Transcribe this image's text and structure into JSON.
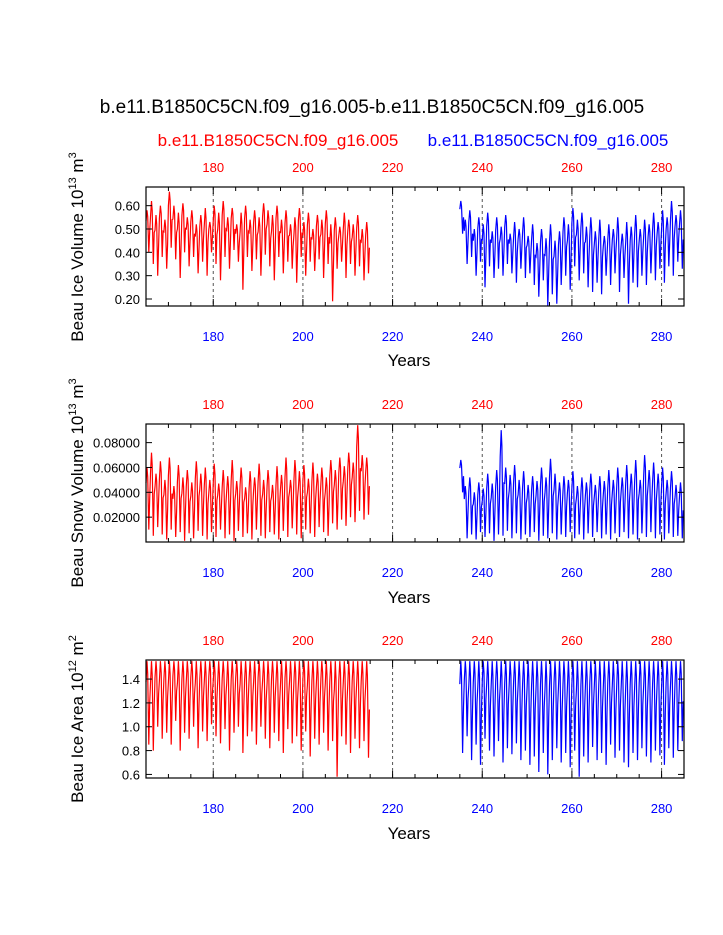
{
  "page": {
    "title": "b.e11.B1850C5CN.f09_g16.005-b.e11.B1850C5CN.f09_g16.005",
    "case_a": "b.e11.B1850C5CN.f09_g16.005",
    "case_b": "b.e11.B1850C5CN.f09_g16.005"
  },
  "colors": {
    "case_a": "#ff0000",
    "case_b": "#0000ff",
    "axis": "#000000",
    "grid": "#555555"
  },
  "chart_data": [
    {
      "type": "line",
      "name": "ice-volume",
      "ylabel_base": "Beau Ice Volume 10",
      "ylabel_exp": "13",
      "ylabel_unit": "m",
      "ylabel_unit_exp": "3",
      "xlabel": "Years",
      "xlim": [
        165,
        285
      ],
      "ylim": [
        0.17,
        0.68
      ],
      "yticks": [
        0.2,
        0.3,
        0.4,
        0.5,
        0.6
      ],
      "ytick_labels": [
        "0.20",
        "0.30",
        "0.40",
        "0.50",
        "0.60"
      ],
      "xticks": [
        180,
        200,
        220,
        240,
        260,
        280
      ],
      "xtick_labels_top": [
        "180",
        "200",
        "220",
        "240",
        "260",
        "280"
      ],
      "xtick_labels_bottom": [
        "180",
        "200",
        "220",
        "240",
        "260",
        "280"
      ],
      "gridlines": [
        180,
        200,
        220,
        240,
        260,
        280
      ],
      "series": [
        {
          "name": "case_a",
          "x_start": 165,
          "x_end": 215,
          "max": [
            0.58,
            0.62,
            0.56,
            0.6,
            0.54,
            0.66,
            0.6,
            0.57,
            0.61,
            0.55,
            0.58,
            0.52,
            0.56,
            0.59,
            0.53,
            0.6,
            0.57,
            0.62,
            0.55,
            0.59,
            0.52,
            0.57,
            0.6,
            0.54,
            0.58,
            0.55,
            0.61,
            0.58,
            0.56,
            0.6,
            0.54,
            0.58,
            0.52,
            0.55,
            0.59,
            0.53,
            0.57,
            0.5,
            0.56,
            0.54,
            0.58,
            0.52,
            0.55,
            0.51,
            0.57,
            0.54,
            0.52,
            0.56,
            0.5,
            0.53
          ],
          "min": [
            0.4,
            0.35,
            0.3,
            0.38,
            0.33,
            0.42,
            0.37,
            0.29,
            0.4,
            0.34,
            0.38,
            0.31,
            0.36,
            0.3,
            0.4,
            0.35,
            0.28,
            0.38,
            0.33,
            0.41,
            0.36,
            0.24,
            0.38,
            0.32,
            0.37,
            0.3,
            0.39,
            0.34,
            0.28,
            0.38,
            0.31,
            0.36,
            0.33,
            0.27,
            0.38,
            0.3,
            0.36,
            0.32,
            0.37,
            0.29,
            0.35,
            0.19,
            0.33,
            0.36,
            0.29,
            0.35,
            0.3,
            0.34,
            0.28,
            0.31
          ]
        },
        {
          "name": "case_b",
          "x_start": 235,
          "x_end": 285,
          "max": [
            0.62,
            0.54,
            0.58,
            0.5,
            0.55,
            0.52,
            0.57,
            0.49,
            0.55,
            0.51,
            0.56,
            0.48,
            0.53,
            0.5,
            0.55,
            0.47,
            0.52,
            0.44,
            0.5,
            0.46,
            0.52,
            0.45,
            0.49,
            0.55,
            0.52,
            0.59,
            0.54,
            0.57,
            0.51,
            0.55,
            0.49,
            0.54,
            0.47,
            0.52,
            0.5,
            0.55,
            0.48,
            0.53,
            0.51,
            0.56,
            0.5,
            0.54,
            0.52,
            0.57,
            0.53,
            0.58,
            0.55,
            0.62,
            0.56,
            0.58
          ],
          "min": [
            0.48,
            0.35,
            0.38,
            0.3,
            0.36,
            0.25,
            0.34,
            0.29,
            0.33,
            0.3,
            0.35,
            0.31,
            0.27,
            0.33,
            0.29,
            0.31,
            0.26,
            0.21,
            0.28,
            0.17,
            0.22,
            0.18,
            0.26,
            0.3,
            0.24,
            0.34,
            0.28,
            0.31,
            0.25,
            0.23,
            0.27,
            0.22,
            0.3,
            0.26,
            0.31,
            0.23,
            0.29,
            0.18,
            0.27,
            0.25,
            0.3,
            0.26,
            0.31,
            0.28,
            0.33,
            0.27,
            0.34,
            0.3,
            0.36,
            0.33
          ]
        }
      ]
    },
    {
      "type": "line",
      "name": "snow-volume",
      "ylabel_base": "Beau Snow Volume 10",
      "ylabel_exp": "13",
      "ylabel_unit": "m",
      "ylabel_unit_exp": "3",
      "xlabel": "Years",
      "xlim": [
        165,
        285
      ],
      "ylim": [
        0.0,
        0.095
      ],
      "yticks": [
        0.02,
        0.04,
        0.06,
        0.08
      ],
      "ytick_labels": [
        "0.02000",
        "0.04000",
        "0.06000",
        "0.08000"
      ],
      "xticks": [
        180,
        200,
        220,
        240,
        260,
        280
      ],
      "xtick_labels_top": [
        "180",
        "200",
        "220",
        "240",
        "260",
        "280"
      ],
      "xtick_labels_bottom": [
        "180",
        "200",
        "220",
        "240",
        "260",
        "280"
      ],
      "gridlines": [
        180,
        200,
        220,
        240,
        260,
        280
      ],
      "series": [
        {
          "name": "case_a",
          "x_start": 165,
          "x_end": 215,
          "max": [
            0.06,
            0.072,
            0.055,
            0.065,
            0.05,
            0.068,
            0.045,
            0.062,
            0.052,
            0.058,
            0.048,
            0.065,
            0.055,
            0.06,
            0.05,
            0.063,
            0.047,
            0.058,
            0.053,
            0.066,
            0.049,
            0.06,
            0.044,
            0.057,
            0.052,
            0.063,
            0.05,
            0.058,
            0.046,
            0.061,
            0.054,
            0.068,
            0.05,
            0.066,
            0.057,
            0.062,
            0.051,
            0.064,
            0.055,
            0.06,
            0.052,
            0.066,
            0.058,
            0.068,
            0.061,
            0.072,
            0.064,
            0.094,
            0.07,
            0.068
          ],
          "max_extra": [],
          "min": [
            0.01,
            0.005,
            0.012,
            0.006,
            0.002,
            0.01,
            0.004,
            0.008,
            0.001,
            0.007,
            0.003,
            0.009,
            0.005,
            0.002,
            0.008,
            0.004,
            0.01,
            0.003,
            0.006,
            0.001,
            0.009,
            0.004,
            0.007,
            0.002,
            0.01,
            0.005,
            0.003,
            0.008,
            0.006,
            0.002,
            0.009,
            0.004,
            0.011,
            0.006,
            0.003,
            0.01,
            0.007,
            0.004,
            0.012,
            0.008,
            0.005,
            0.015,
            0.01,
            0.018,
            0.013,
            0.02,
            0.016,
            0.025,
            0.018,
            0.022
          ]
        },
        {
          "name": "case_b",
          "x_start": 235,
          "x_end": 285,
          "max": [
            0.066,
            0.045,
            0.052,
            0.04,
            0.048,
            0.043,
            0.055,
            0.047,
            0.058,
            0.09,
            0.06,
            0.054,
            0.062,
            0.05,
            0.057,
            0.046,
            0.053,
            0.049,
            0.06,
            0.052,
            0.067,
            0.055,
            0.048,
            0.053,
            0.05,
            0.057,
            0.045,
            0.052,
            0.048,
            0.055,
            0.046,
            0.053,
            0.049,
            0.058,
            0.05,
            0.06,
            0.052,
            0.062,
            0.055,
            0.066,
            0.05,
            0.07,
            0.058,
            0.064,
            0.055,
            0.06,
            0.05,
            0.057,
            0.046,
            0.048
          ],
          "min": [
            0.04,
            0.003,
            0.006,
            0.002,
            0.008,
            0.004,
            0.007,
            0.001,
            0.006,
            0.005,
            0.009,
            0.003,
            0.007,
            0.002,
            0.006,
            0.004,
            0.008,
            0.001,
            0.005,
            0.003,
            0.007,
            0.002,
            0.006,
            0.004,
            0.008,
            0.003,
            0.006,
            0.002,
            0.007,
            0.004,
            0.008,
            0.003,
            0.006,
            0.002,
            0.007,
            0.004,
            0.008,
            0.003,
            0.006,
            0.002,
            0.007,
            0.004,
            0.008,
            0.003,
            0.006,
            0.002,
            0.007,
            0.004,
            0.005,
            0.003
          ]
        }
      ]
    },
    {
      "type": "line",
      "name": "ice-area",
      "ylabel_base": "Beau Ice Area 10",
      "ylabel_exp": "12",
      "ylabel_unit": "m",
      "ylabel_unit_exp": "2",
      "xlabel": "Years",
      "xlim": [
        165,
        285
      ],
      "ylim": [
        0.57,
        1.56
      ],
      "yticks": [
        0.6,
        0.8,
        1.0,
        1.2,
        1.4
      ],
      "ytick_labels": [
        "0.6",
        "0.8",
        "1.0",
        "1.2",
        "1.4"
      ],
      "xticks": [
        180,
        200,
        220,
        240,
        260,
        280
      ],
      "xtick_labels_top": [
        "180",
        "200",
        "220",
        "240",
        "260",
        "280"
      ],
      "xtick_labels_bottom": [
        "180",
        "200",
        "220",
        "240",
        "260",
        "280"
      ],
      "gridlines": [
        180,
        200,
        220,
        240,
        260,
        280
      ],
      "series": [
        {
          "name": "case_a",
          "x_start": 165,
          "x_end": 215,
          "max": [
            1.55,
            1.55,
            1.55,
            1.55,
            1.55,
            1.55,
            1.55,
            1.55,
            1.55,
            1.55,
            1.55,
            1.55,
            1.55,
            1.55,
            1.55,
            1.55,
            1.55,
            1.55,
            1.55,
            1.55,
            1.55,
            1.55,
            1.55,
            1.55,
            1.55,
            1.55,
            1.55,
            1.55,
            1.55,
            1.55,
            1.55,
            1.55,
            1.55,
            1.55,
            1.55,
            1.55,
            1.55,
            1.55,
            1.55,
            1.55,
            1.55,
            1.55,
            1.55,
            1.55,
            1.55,
            1.55,
            1.55,
            1.55,
            1.55,
            1.55
          ],
          "min": [
            0.85,
            0.8,
            1.0,
            0.9,
            0.95,
            0.85,
            1.05,
            0.8,
            0.95,
            0.9,
            1.0,
            0.82,
            0.96,
            0.88,
            1.02,
            0.92,
            0.86,
            0.98,
            0.8,
            0.95,
            1.0,
            0.78,
            0.92,
            0.96,
            0.85,
            1.0,
            0.9,
            0.82,
            0.95,
            0.88,
            0.78,
            0.98,
            0.86,
            0.92,
            0.8,
            0.96,
            0.75,
            0.9,
            0.85,
            0.95,
            0.8,
            0.88,
            0.58,
            0.92,
            0.85,
            0.78,
            0.9,
            0.82,
            0.88,
            0.74
          ]
        },
        {
          "name": "case_b",
          "x_start": 235,
          "x_end": 285,
          "max": [
            1.55,
            1.55,
            1.55,
            1.55,
            1.55,
            1.55,
            1.55,
            1.55,
            1.55,
            1.55,
            1.55,
            1.55,
            1.55,
            1.55,
            1.55,
            1.55,
            1.55,
            1.55,
            1.55,
            1.55,
            1.55,
            1.55,
            1.55,
            1.55,
            1.55,
            1.55,
            1.55,
            1.55,
            1.55,
            1.55,
            1.55,
            1.55,
            1.55,
            1.55,
            1.55,
            1.55,
            1.55,
            1.55,
            1.55,
            1.55,
            1.55,
            1.55,
            1.55,
            1.55,
            1.55,
            1.55,
            1.55,
            1.55,
            1.55,
            1.55
          ],
          "min": [
            0.78,
            0.92,
            0.72,
            0.85,
            0.68,
            0.9,
            0.8,
            0.75,
            0.88,
            0.7,
            0.82,
            0.77,
            0.86,
            0.72,
            0.8,
            0.68,
            0.75,
            0.62,
            0.78,
            0.6,
            0.72,
            0.82,
            0.7,
            0.78,
            0.66,
            0.8,
            0.58,
            0.75,
            0.7,
            0.83,
            0.72,
            0.78,
            0.68,
            0.85,
            0.74,
            0.8,
            0.7,
            0.66,
            0.78,
            0.72,
            0.82,
            0.75,
            0.7,
            0.8,
            0.76,
            0.68,
            0.82,
            0.74,
            0.8,
            0.88
          ]
        }
      ]
    }
  ]
}
